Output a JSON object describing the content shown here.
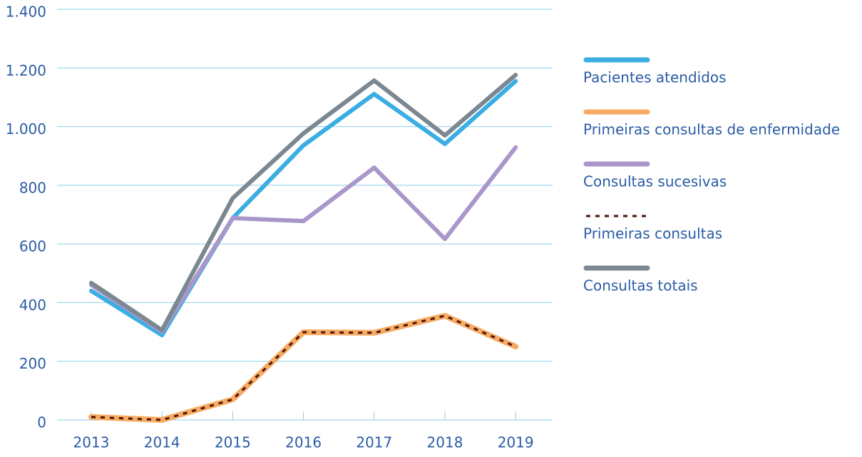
{
  "chart_data": {
    "type": "line",
    "categories": [
      "2013",
      "2014",
      "2015",
      "2016",
      "2017",
      "2018",
      "2019"
    ],
    "series": [
      {
        "name": "Pacientes atendidos",
        "color": "#3aaee2",
        "values": [
          440,
          289,
          688,
          936,
          1111,
          941,
          1155
        ]
      },
      {
        "name": "Primeiras consultas de enfermidade",
        "color": "#f7aa62",
        "values": [
          10,
          0,
          70,
          299,
          297,
          355,
          250
        ]
      },
      {
        "name": "Consultas sucesivas",
        "color": "#a997cb",
        "values": [
          460,
          301,
          688,
          678,
          860,
          617,
          929
        ]
      },
      {
        "name": "Primeiras consultas",
        "color": "#4a1608",
        "style": "dashed",
        "values": [
          10,
          0,
          70,
          299,
          297,
          355,
          250
        ]
      },
      {
        "name": "Consultas totais",
        "color": "#7b8791",
        "values": [
          467,
          306,
          756,
          977,
          1157,
          970,
          1176
        ]
      }
    ],
    "ylim": [
      0,
      1400
    ],
    "yticks": [
      0,
      200,
      400,
      600,
      800,
      {
        "value": 1000,
        "label": "1.000"
      },
      {
        "value": 1200,
        "label": "1.200"
      },
      {
        "value": 1400,
        "label": "1.400"
      }
    ],
    "grid": true
  }
}
